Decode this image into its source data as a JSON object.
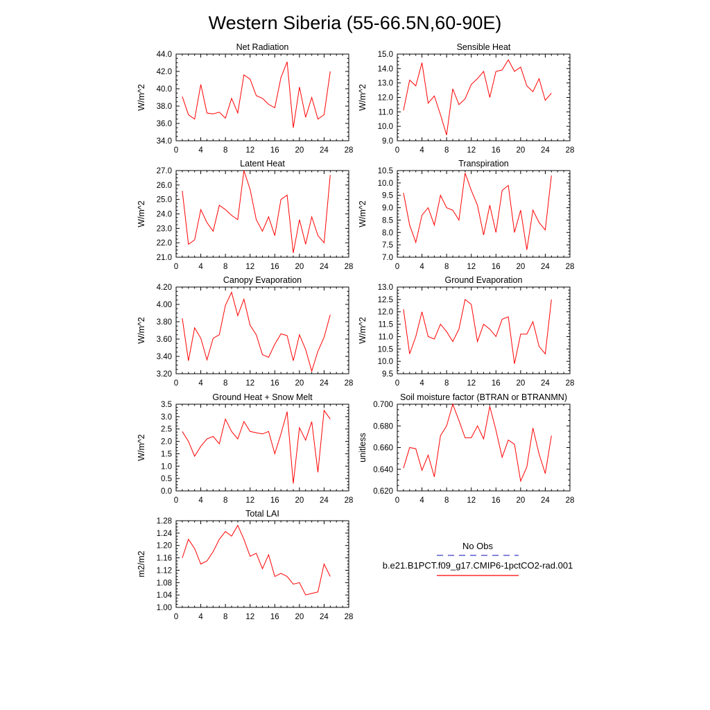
{
  "figure": {
    "title": "Western Siberia (55-66.5N,60-90E)"
  },
  "legend": {
    "entries": [
      {
        "label": "No Obs",
        "color": "#3c3cc8",
        "style": "dashed"
      },
      {
        "label": "b.e21.B1PCT.f09_g17.CMIP6-1pctCO2-rad.001",
        "color": "#ff0000",
        "style": "solid"
      }
    ]
  },
  "chart_data": [
    {
      "type": "line",
      "title": "Net Radiation",
      "xlabel": "",
      "ylabel": "W/m^2",
      "xlim": [
        0,
        28
      ],
      "ylim": [
        34.0,
        44.0
      ],
      "xticks": [
        0,
        4,
        8,
        12,
        16,
        20,
        24,
        28
      ],
      "xtick_labels": [
        "0",
        "4",
        "8",
        "12",
        "16",
        "20",
        "24",
        "28"
      ],
      "yticks": [
        34.0,
        36.0,
        38.0,
        40.0,
        42.0,
        44.0
      ],
      "ytick_labels": [
        "34.0",
        "36.0",
        "38.0",
        "40.0",
        "42.0",
        "44.0"
      ],
      "series": [
        {
          "color": "#ff0000",
          "x": [
            1,
            2,
            3,
            4,
            5,
            6,
            7,
            8,
            9,
            10,
            11,
            12,
            13,
            14,
            15,
            16,
            17,
            18,
            19,
            20,
            21,
            22,
            23,
            24,
            25
          ],
          "values": [
            39.1,
            37.0,
            36.5,
            40.5,
            37.2,
            37.1,
            37.3,
            36.6,
            38.9,
            37.2,
            41.6,
            41.1,
            39.2,
            38.9,
            38.2,
            37.8,
            41.3,
            43.1,
            35.5,
            40.2,
            36.7,
            39.0,
            36.5,
            37.0,
            42.0
          ]
        }
      ]
    },
    {
      "type": "line",
      "title": "Sensible Heat",
      "xlabel": "",
      "ylabel": "W/m^2",
      "xlim": [
        0,
        28
      ],
      "ylim": [
        9.0,
        15.0
      ],
      "xticks": [
        0,
        4,
        8,
        12,
        16,
        20,
        24,
        28
      ],
      "xtick_labels": [
        "0",
        "4",
        "8",
        "12",
        "16",
        "20",
        "24",
        "28"
      ],
      "yticks": [
        9.0,
        10.0,
        11.0,
        12.0,
        13.0,
        14.0,
        15.0
      ],
      "ytick_labels": [
        "9.0",
        "10.0",
        "11.0",
        "12.0",
        "13.0",
        "14.0",
        "15.0"
      ],
      "series": [
        {
          "color": "#ff0000",
          "x": [
            1,
            2,
            3,
            4,
            5,
            6,
            7,
            8,
            9,
            10,
            11,
            12,
            13,
            14,
            15,
            16,
            17,
            18,
            19,
            20,
            21,
            22,
            23,
            24,
            25
          ],
          "values": [
            11.1,
            13.2,
            12.8,
            14.4,
            11.6,
            12.1,
            10.8,
            9.4,
            12.6,
            11.5,
            11.9,
            12.9,
            13.3,
            13.8,
            12.0,
            13.8,
            13.9,
            14.6,
            13.8,
            14.1,
            12.8,
            12.4,
            13.3,
            11.8,
            12.3
          ]
        }
      ]
    },
    {
      "type": "line",
      "title": "Latent Heat",
      "xlabel": "",
      "ylabel": "W/m^2",
      "xlim": [
        0,
        28
      ],
      "ylim": [
        21.0,
        27.0
      ],
      "xticks": [
        0,
        4,
        8,
        12,
        16,
        20,
        24,
        28
      ],
      "xtick_labels": [
        "0",
        "4",
        "8",
        "12",
        "16",
        "20",
        "24",
        "28"
      ],
      "yticks": [
        21.0,
        22.0,
        23.0,
        24.0,
        25.0,
        26.0,
        27.0
      ],
      "ytick_labels": [
        "21.0",
        "22.0",
        "23.0",
        "24.0",
        "25.0",
        "26.0",
        "27.0"
      ],
      "series": [
        {
          "color": "#ff0000",
          "x": [
            1,
            2,
            3,
            4,
            5,
            6,
            7,
            8,
            9,
            10,
            11,
            12,
            13,
            14,
            15,
            16,
            17,
            18,
            19,
            20,
            21,
            22,
            23,
            24,
            25
          ],
          "values": [
            25.6,
            21.9,
            22.2,
            24.3,
            23.4,
            22.8,
            24.6,
            24.3,
            23.9,
            23.6,
            27.0,
            25.7,
            23.6,
            22.8,
            23.8,
            22.5,
            25.0,
            25.3,
            21.3,
            23.6,
            21.9,
            23.8,
            22.5,
            22.0,
            26.7
          ]
        }
      ]
    },
    {
      "type": "line",
      "title": "Transpiration",
      "xlabel": "",
      "ylabel": "W/m^2",
      "xlim": [
        0,
        28
      ],
      "ylim": [
        7.0,
        10.5
      ],
      "xticks": [
        0,
        4,
        8,
        12,
        16,
        20,
        24,
        28
      ],
      "xtick_labels": [
        "0",
        "4",
        "8",
        "12",
        "16",
        "20",
        "24",
        "28"
      ],
      "yticks": [
        7.0,
        7.5,
        8.0,
        8.5,
        9.0,
        9.5,
        10.0,
        10.5
      ],
      "ytick_labels": [
        "7.0",
        "7.5",
        "8.0",
        "8.5",
        "9.0",
        "9.5",
        "10.0",
        "10.5"
      ],
      "series": [
        {
          "color": "#ff0000",
          "x": [
            1,
            2,
            3,
            4,
            5,
            6,
            7,
            8,
            9,
            10,
            11,
            12,
            13,
            14,
            15,
            16,
            17,
            18,
            19,
            20,
            21,
            22,
            23,
            24,
            25
          ],
          "values": [
            9.6,
            8.3,
            7.6,
            8.7,
            9.0,
            8.3,
            9.5,
            9.0,
            8.9,
            8.5,
            10.4,
            9.7,
            9.1,
            7.9,
            9.1,
            8.0,
            9.7,
            9.9,
            8.0,
            8.9,
            7.3,
            8.9,
            8.4,
            8.1,
            10.3
          ]
        }
      ]
    },
    {
      "type": "line",
      "title": "Canopy Evaporation",
      "xlabel": "",
      "ylabel": "W/m^2",
      "xlim": [
        0,
        28
      ],
      "ylim": [
        3.2,
        4.2
      ],
      "xticks": [
        0,
        4,
        8,
        12,
        16,
        20,
        24,
        28
      ],
      "xtick_labels": [
        "0",
        "4",
        "8",
        "12",
        "16",
        "20",
        "24",
        "28"
      ],
      "yticks": [
        3.2,
        3.4,
        3.6,
        3.8,
        4.0,
        4.2
      ],
      "ytick_labels": [
        "3.20",
        "3.40",
        "3.60",
        "3.80",
        "4.00",
        "4.20"
      ],
      "series": [
        {
          "color": "#ff0000",
          "x": [
            1,
            2,
            3,
            4,
            5,
            6,
            7,
            8,
            9,
            10,
            11,
            12,
            13,
            14,
            15,
            16,
            17,
            18,
            19,
            20,
            21,
            22,
            23,
            24,
            25
          ],
          "values": [
            3.84,
            3.35,
            3.73,
            3.61,
            3.36,
            3.61,
            3.65,
            3.99,
            4.14,
            3.87,
            4.06,
            3.76,
            3.65,
            3.42,
            3.39,
            3.54,
            3.66,
            3.64,
            3.35,
            3.65,
            3.48,
            3.23,
            3.46,
            3.62,
            3.88
          ]
        }
      ]
    },
    {
      "type": "line",
      "title": "Ground Evaporation",
      "xlabel": "",
      "ylabel": "W/m^2",
      "xlim": [
        0,
        28
      ],
      "ylim": [
        9.5,
        13.0
      ],
      "xticks": [
        0,
        4,
        8,
        12,
        16,
        20,
        24,
        28
      ],
      "xtick_labels": [
        "0",
        "4",
        "8",
        "12",
        "16",
        "20",
        "24",
        "28"
      ],
      "yticks": [
        9.5,
        10.0,
        10.5,
        11.0,
        11.5,
        12.0,
        12.5,
        13.0
      ],
      "ytick_labels": [
        "9.5",
        "10.0",
        "10.5",
        "11.0",
        "11.5",
        "12.0",
        "12.5",
        "13.0"
      ],
      "series": [
        {
          "color": "#ff0000",
          "x": [
            1,
            2,
            3,
            4,
            5,
            6,
            7,
            8,
            9,
            10,
            11,
            12,
            13,
            14,
            15,
            16,
            17,
            18,
            19,
            20,
            21,
            22,
            23,
            24,
            25
          ],
          "values": [
            12.1,
            10.3,
            11.0,
            12.0,
            11.0,
            10.9,
            11.5,
            11.2,
            10.8,
            11.3,
            12.5,
            12.3,
            10.8,
            11.5,
            11.3,
            11.0,
            11.7,
            11.8,
            9.9,
            11.1,
            11.1,
            11.6,
            10.6,
            10.3,
            12.5
          ]
        }
      ]
    },
    {
      "type": "line",
      "title": "Ground Heat + Snow Melt",
      "xlabel": "",
      "ylabel": "W/m^2",
      "xlim": [
        0,
        28
      ],
      "ylim": [
        0.0,
        3.5
      ],
      "xticks": [
        0,
        4,
        8,
        12,
        16,
        20,
        24,
        28
      ],
      "xtick_labels": [
        "0",
        "4",
        "8",
        "12",
        "16",
        "20",
        "24",
        "28"
      ],
      "yticks": [
        0.0,
        0.5,
        1.0,
        1.5,
        2.0,
        2.5,
        3.0,
        3.5
      ],
      "ytick_labels": [
        "0.0",
        "0.5",
        "1.0",
        "1.5",
        "2.0",
        "2.5",
        "3.0",
        "3.5"
      ],
      "series": [
        {
          "color": "#ff0000",
          "x": [
            1,
            2,
            3,
            4,
            5,
            6,
            7,
            8,
            9,
            10,
            11,
            12,
            13,
            14,
            15,
            16,
            17,
            18,
            19,
            20,
            21,
            22,
            23,
            24,
            25
          ],
          "values": [
            2.4,
            2.0,
            1.4,
            1.8,
            2.1,
            2.2,
            1.9,
            2.9,
            2.4,
            2.1,
            2.8,
            2.4,
            2.35,
            2.3,
            2.4,
            1.5,
            2.3,
            3.2,
            0.3,
            2.55,
            2.05,
            2.8,
            0.75,
            3.25,
            2.9
          ]
        }
      ]
    },
    {
      "type": "line",
      "title": "Soil moisture factor (BTRAN or BTRANMN)",
      "xlabel": "",
      "ylabel": "unitless",
      "xlim": [
        0,
        28
      ],
      "ylim": [
        0.62,
        0.7
      ],
      "xticks": [
        0,
        4,
        8,
        12,
        16,
        20,
        24,
        28
      ],
      "xtick_labels": [
        "0",
        "4",
        "8",
        "12",
        "16",
        "20",
        "24",
        "28"
      ],
      "yticks": [
        0.62,
        0.64,
        0.66,
        0.68,
        0.7
      ],
      "ytick_labels": [
        "0.620",
        "0.640",
        "0.660",
        "0.680",
        "0.700"
      ],
      "series": [
        {
          "color": "#ff0000",
          "x": [
            1,
            2,
            3,
            4,
            5,
            6,
            7,
            8,
            9,
            10,
            11,
            12,
            13,
            14,
            15,
            16,
            17,
            18,
            19,
            20,
            21,
            22,
            23,
            24,
            25
          ],
          "values": [
            0.641,
            0.66,
            0.659,
            0.639,
            0.653,
            0.633,
            0.671,
            0.68,
            0.7,
            0.685,
            0.669,
            0.669,
            0.68,
            0.668,
            0.698,
            0.676,
            0.651,
            0.667,
            0.663,
            0.629,
            0.642,
            0.678,
            0.654,
            0.636,
            0.671
          ]
        }
      ]
    },
    {
      "type": "line",
      "title": "Total LAI",
      "xlabel": "",
      "ylabel": "m2/m2",
      "xlim": [
        0,
        28
      ],
      "ylim": [
        1.0,
        1.28
      ],
      "xticks": [
        0,
        4,
        8,
        12,
        16,
        20,
        24,
        28
      ],
      "xtick_labels": [
        "0",
        "4",
        "8",
        "12",
        "16",
        "20",
        "24",
        "28"
      ],
      "yticks": [
        1.0,
        1.04,
        1.08,
        1.12,
        1.16,
        1.2,
        1.24,
        1.28
      ],
      "ytick_labels": [
        "1.00",
        "1.04",
        "1.08",
        "1.12",
        "1.16",
        "1.20",
        "1.24",
        "1.28"
      ],
      "series": [
        {
          "color": "#ff0000",
          "x": [
            1,
            2,
            3,
            4,
            5,
            6,
            7,
            8,
            9,
            10,
            11,
            12,
            13,
            14,
            15,
            16,
            17,
            18,
            19,
            20,
            21,
            22,
            23,
            24,
            25
          ],
          "values": [
            1.16,
            1.22,
            1.19,
            1.14,
            1.15,
            1.18,
            1.22,
            1.245,
            1.23,
            1.265,
            1.22,
            1.165,
            1.175,
            1.125,
            1.17,
            1.1,
            1.11,
            1.1,
            1.075,
            1.08,
            1.04,
            1.045,
            1.05,
            1.14,
            1.1
          ]
        }
      ]
    }
  ]
}
